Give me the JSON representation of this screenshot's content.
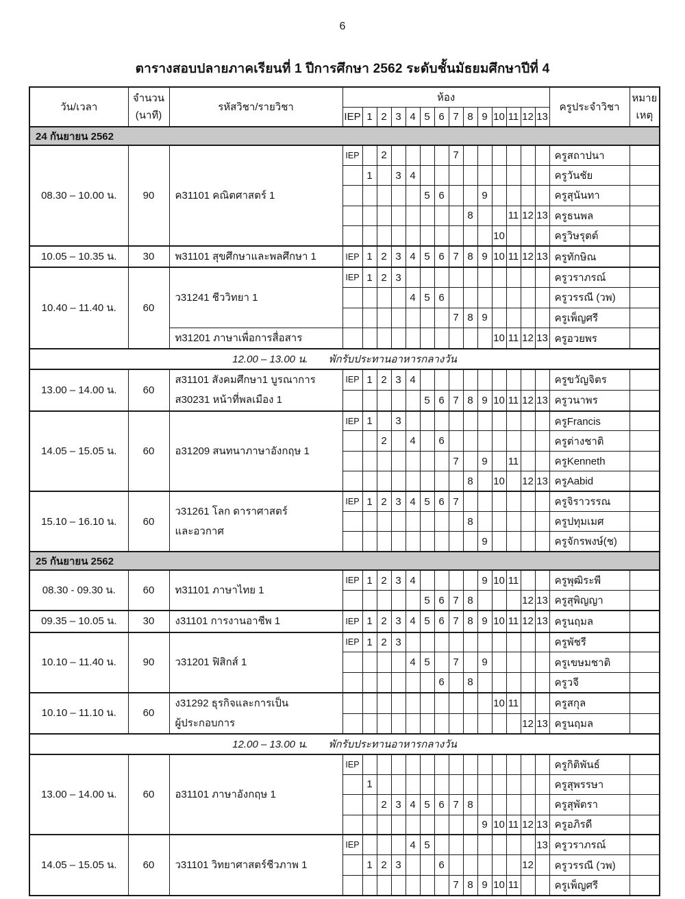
{
  "page_number": "6",
  "title": "ตารางสอบปลายภาคเรียนที่ 1 ปีการศึกษา 2562 ระดับชั้นมัธยมศึกษาปีที่ 4",
  "colors": {
    "day_band_bg": "#c8c8c8",
    "border": "#1a1a1a",
    "text": "#141414"
  },
  "table": {
    "headers": {
      "datetime": "วัน/เวลา",
      "duration": [
        "จำนวน",
        "(นาที)"
      ],
      "subject": "รหัสวิชา/รายวิชา",
      "room_group": "ห้อง",
      "room_columns": [
        "IEP",
        "1",
        "2",
        "3",
        "4",
        "5",
        "6",
        "7",
        "8",
        "9",
        "10",
        "11",
        "12",
        "13"
      ],
      "teacher": "ครูประจำวิชา",
      "remark": [
        "หมาย",
        "เหตุ"
      ]
    },
    "blocks": [
      {
        "type": "day",
        "label": "24 กันยายน 2562"
      },
      {
        "type": "group",
        "time": "08.30 – 10.00 น.",
        "minutes": "90",
        "subjects": [
          {
            "rowspan": 5,
            "lines": [
              "ค31101 คณิตศาสตร์ 1"
            ]
          }
        ],
        "rows": [
          {
            "rooms": [
              "IEP",
              "2",
              "7"
            ],
            "teacher": "ครูสถาปนา"
          },
          {
            "rooms": [
              "1",
              "3",
              "4"
            ],
            "teacher": "ครูวันชัย"
          },
          {
            "rooms": [
              "5",
              "6",
              "9"
            ],
            "teacher": "ครูสุนันทา"
          },
          {
            "rooms": [
              "8",
              "11",
              "12",
              "13"
            ],
            "teacher": "ครูธนพล"
          },
          {
            "rooms": [
              "10"
            ],
            "teacher": "ครูวิษรุตต์"
          }
        ]
      },
      {
        "type": "group",
        "time": "10.05 – 10.35 น.",
        "minutes": "30",
        "subjects": [
          {
            "rowspan": 1,
            "lines": [
              "พ31101 สุขศึกษาและพลศึกษา 1"
            ]
          }
        ],
        "rows": [
          {
            "rooms": [
              "IEP",
              "1",
              "2",
              "3",
              "4",
              "5",
              "6",
              "7",
              "8",
              "9",
              "10",
              "11",
              "12",
              "13"
            ],
            "teacher": "ครูทักษิณ"
          }
        ]
      },
      {
        "type": "group",
        "time": "10.40 – 11.40 น.",
        "minutes": "60",
        "subjects": [
          {
            "rowspan": 3,
            "lines": [
              "ว31241 ชีววิทยา 1"
            ]
          },
          {
            "rowspan": 1,
            "lines": [
              "ท31201 ภาษาเพื่อการสื่อสาร"
            ]
          }
        ],
        "rows": [
          {
            "rooms": [
              "IEP",
              "1",
              "2",
              "3"
            ],
            "teacher": "ครูวราภรณ์"
          },
          {
            "rooms": [
              "4",
              "5",
              "6"
            ],
            "teacher": "ครูวรรณี (วพ)"
          },
          {
            "rooms": [
              "7",
              "8",
              "9"
            ],
            "teacher": "ครูเพ็ญศรี"
          },
          {
            "rooms": [
              "10",
              "11",
              "12",
              "13"
            ],
            "teacher": "ครูอวยพร"
          }
        ]
      },
      {
        "type": "lunch",
        "time": "12.00 – 13.00 น.",
        "label": "พักรับประทานอาหารกลางวัน"
      },
      {
        "type": "group",
        "time": "13.00 – 14.00 น.",
        "minutes": "60",
        "subjects": [
          {
            "rowspan": 2,
            "lines": [
              "ส31101 สังคมศึกษา1 บูรณาการ",
              "ส30231 หน้าที่พลเมือง 1"
            ]
          }
        ],
        "rows": [
          {
            "rooms": [
              "IEP",
              "1",
              "2",
              "3",
              "4"
            ],
            "teacher": "ครูขวัญจิตร"
          },
          {
            "rooms": [
              "5",
              "6",
              "7",
              "8",
              "9",
              "10",
              "11",
              "12",
              "13"
            ],
            "teacher": "ครูวนาพร"
          }
        ]
      },
      {
        "type": "group",
        "time": "14.05 – 15.05 น.",
        "minutes": "60",
        "subjects": [
          {
            "rowspan": 4,
            "lines": [
              "อ31209 สนทนาภาษาอังกฤษ 1"
            ]
          }
        ],
        "rows": [
          {
            "rooms": [
              "IEP",
              "1",
              "3"
            ],
            "teacher": "ครูFrancis"
          },
          {
            "rooms": [
              "2",
              "4",
              "6"
            ],
            "teacher": "ครูต่างชาติ"
          },
          {
            "rooms": [
              "7",
              "9",
              "11"
            ],
            "teacher": "ครูKenneth"
          },
          {
            "rooms": [
              "8",
              "10",
              "12",
              "13"
            ],
            "teacher": "ครูAabid"
          }
        ]
      },
      {
        "type": "group",
        "time": "15.10 – 16.10 น.",
        "minutes": "60",
        "subjects": [
          {
            "rowspan": 3,
            "lines": [
              "ว31261 โลก ดาราศาสตร์",
              "และอวกาศ"
            ]
          }
        ],
        "rows": [
          {
            "rooms": [
              "IEP",
              "1",
              "2",
              "3",
              "4",
              "5",
              "6",
              "7"
            ],
            "teacher": "ครูจิราวรรณ"
          },
          {
            "rooms": [
              "8"
            ],
            "teacher": "ครูปทุมเมศ"
          },
          {
            "rooms": [
              "9"
            ],
            "teacher": "ครูจักรพงษ์(ช)"
          }
        ]
      },
      {
        "type": "day",
        "label": "25 กันยายน 2562"
      },
      {
        "type": "group",
        "time": "08.30 - 09.30 น.",
        "minutes": "60",
        "subjects": [
          {
            "rowspan": 2,
            "lines": [
              "ท31101 ภาษาไทย 1"
            ]
          }
        ],
        "rows": [
          {
            "rooms": [
              "IEP",
              "1",
              "2",
              "3",
              "4",
              "9",
              "10",
              "11"
            ],
            "teacher": "ครูพุฒิระพี"
          },
          {
            "rooms": [
              "5",
              "6",
              "7",
              "8",
              "12",
              "13"
            ],
            "teacher": "ครูสุพิญญา"
          }
        ]
      },
      {
        "type": "group",
        "time": "09.35 – 10.05 น.",
        "minutes": "30",
        "subjects": [
          {
            "rowspan": 1,
            "lines": [
              "ง31101 การงานอาชีพ 1"
            ]
          }
        ],
        "rows": [
          {
            "rooms": [
              "IEP",
              "1",
              "2",
              "3",
              "4",
              "5",
              "6",
              "7",
              "8",
              "9",
              "10",
              "11",
              "12",
              "13"
            ],
            "teacher": "ครูนฤมล"
          }
        ]
      },
      {
        "type": "group",
        "time": "10.10 – 11.40 น.",
        "minutes": "90",
        "subjects": [
          {
            "rowspan": 3,
            "lines": [
              "ว31201 ฟิสิกส์ 1"
            ]
          }
        ],
        "rows": [
          {
            "rooms": [
              "IEP",
              "1",
              "2",
              "3"
            ],
            "teacher": "ครูพัชรี"
          },
          {
            "rooms": [
              "4",
              "5",
              "7",
              "9"
            ],
            "teacher": "ครูเขษมชาติ"
          },
          {
            "rooms": [
              "6",
              "8"
            ],
            "teacher": "ครูวจี"
          }
        ]
      },
      {
        "type": "group",
        "time": "10.10 – 11.10 น.",
        "minutes": "60",
        "subjects": [
          {
            "rowspan": 2,
            "lines": [
              "ง31292 ธุรกิจและการเป็น",
              "ผู้ประกอบการ"
            ]
          }
        ],
        "rows": [
          {
            "rooms": [
              "10",
              "11"
            ],
            "teacher": "ครูสกุล"
          },
          {
            "rooms": [
              "12",
              "13"
            ],
            "teacher": "ครูนฤมล"
          }
        ]
      },
      {
        "type": "lunch",
        "time": "12.00 – 13.00 น.",
        "label": "พักรับประทานอาหารกลางวัน"
      },
      {
        "type": "group",
        "time": "13.00 – 14.00 น.",
        "minutes": "60",
        "subjects": [
          {
            "rowspan": 4,
            "lines": [
              "อ31101 ภาษาอังกฤษ 1"
            ]
          }
        ],
        "rows": [
          {
            "rooms": [
              "IEP"
            ],
            "teacher": "ครูกิติพันธ์"
          },
          {
            "rooms": [
              "1"
            ],
            "teacher": "ครูสุพรรษา"
          },
          {
            "rooms": [
              "2",
              "3",
              "4",
              "5",
              "6",
              "7",
              "8"
            ],
            "teacher": "ครูสุพัตรา"
          },
          {
            "rooms": [
              "9",
              "10",
              "11",
              "12",
              "13"
            ],
            "teacher": "ครูอภิรดี"
          }
        ]
      },
      {
        "type": "group",
        "time": "14.05 – 15.05 น.",
        "minutes": "60",
        "subjects": [
          {
            "rowspan": 3,
            "lines": [
              "ว31101 วิทยาศาสตร์ชีวภาพ 1"
            ]
          }
        ],
        "rows": [
          {
            "rooms": [
              "IEP",
              "4",
              "5",
              "13"
            ],
            "teacher": "ครูวราภรณ์"
          },
          {
            "rooms": [
              "1",
              "2",
              "3",
              "6",
              "12"
            ],
            "teacher": "ครูวรรณี (วพ)"
          },
          {
            "rooms": [
              "7",
              "8",
              "9",
              "10",
              "11"
            ],
            "teacher": "ครูเพ็ญศรี"
          }
        ]
      }
    ]
  }
}
